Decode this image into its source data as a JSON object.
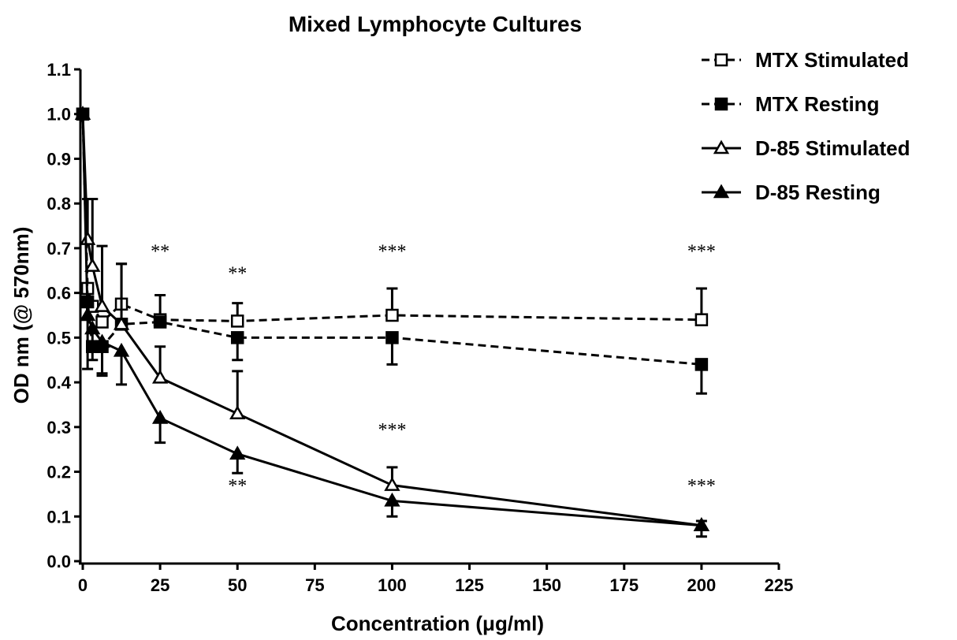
{
  "chart_data": {
    "type": "line",
    "title": "Mixed Lymphocyte Cultures",
    "x_label": "Concentration (μg/ml)",
    "y_label": "OD nm  (@ 570nm)",
    "x": [
      0,
      1.56,
      3.125,
      6.25,
      12.5,
      25,
      50,
      100,
      200
    ],
    "series": [
      {
        "name": "MTX Stimulated",
        "color": "#000000",
        "dash": true,
        "marker": "square",
        "filled": false,
        "error_direction": "up",
        "values": [
          1.0,
          0.61,
          0.57,
          0.535,
          0.575,
          0.54,
          0.537,
          0.55,
          0.54
        ],
        "errors": [
          null,
          null,
          null,
          null,
          0.09,
          0.055,
          0.04,
          0.06,
          0.07
        ]
      },
      {
        "name": "MTX Resting",
        "color": "#000000",
        "dash": true,
        "marker": "square",
        "filled": true,
        "error_direction": "down",
        "values": [
          1.0,
          0.58,
          0.48,
          0.48,
          0.53,
          0.535,
          0.5,
          0.5,
          0.44
        ],
        "errors": [
          null,
          null,
          null,
          0.065,
          null,
          null,
          0.05,
          0.06,
          0.065
        ]
      },
      {
        "name": "D-85 Stimulated",
        "color": "#000000",
        "dash": false,
        "marker": "triangle",
        "filled": false,
        "error_direction": "up",
        "values": [
          1.0,
          0.72,
          0.66,
          0.57,
          0.53,
          0.41,
          0.33,
          0.17,
          0.08
        ],
        "errors": [
          null,
          0.09,
          0.15,
          0.135,
          0.135,
          0.07,
          0.095,
          0.04,
          0.01
        ]
      },
      {
        "name": "D-85 Resting",
        "color": "#000000",
        "dash": false,
        "marker": "triangle",
        "filled": true,
        "error_direction": "down",
        "values": [
          1.0,
          0.55,
          0.52,
          0.49,
          0.47,
          0.32,
          0.24,
          0.135,
          0.08
        ],
        "errors": [
          null,
          0.12,
          0.07,
          0.07,
          0.075,
          0.055,
          0.043,
          0.035,
          0.025
        ]
      }
    ],
    "annotations": [
      {
        "text": "**",
        "x": 25,
        "y": 0.68
      },
      {
        "text": "**",
        "x": 50,
        "y": 0.63
      },
      {
        "text": "***",
        "x": 100,
        "y": 0.68
      },
      {
        "text": "***",
        "x": 200,
        "y": 0.68
      },
      {
        "text": "***",
        "x": 100,
        "y": 0.28
      },
      {
        "text": "**",
        "x": 50,
        "y": 0.155
      },
      {
        "text": "***",
        "x": 200,
        "y": 0.155
      }
    ],
    "xlim": [
      0,
      225
    ],
    "xticks": [
      0,
      25,
      50,
      75,
      100,
      125,
      150,
      175,
      200,
      225
    ],
    "ylim": [
      0,
      1.1
    ],
    "yticks": [
      {
        "value": 0,
        "label": "0.0"
      },
      0.1,
      0.2,
      0.3,
      0.4,
      0.5,
      0.6,
      0.7,
      0.8,
      0.9,
      {
        "value": 1,
        "label": "1.0"
      },
      1.1
    ],
    "legend": "top-right"
  }
}
